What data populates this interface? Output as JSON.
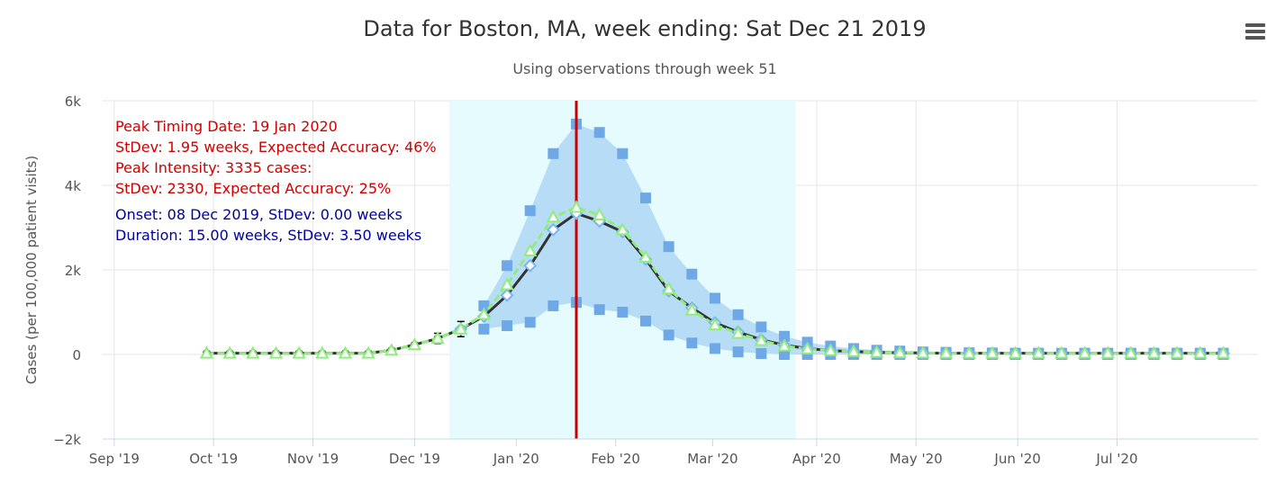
{
  "colors": {
    "band": "#9ecbf2",
    "onset_region": "#e6fbfd",
    "median_line": "#333333",
    "median_marker": "#7cb5ec",
    "square_marker": "#6fa8e6",
    "forecast_line": "#90ed7d",
    "peak_line": "#cc0000",
    "peak_text": "#d00000",
    "onset_text": "#0000a0"
  },
  "menu": {
    "icon": "hamburger-menu-icon"
  },
  "chart_data": {
    "type": "line",
    "title": "Data for Boston, MA, week ending: Sat Dec 21 2019",
    "subtitle": "Using observations through week 51",
    "ylabel": "Cases (per 100,000 patient visits)",
    "ylim": [
      -2000,
      6000
    ],
    "y_ticks": [
      {
        "value": -2000,
        "label": "−2k"
      },
      {
        "value": 0,
        "label": "0"
      },
      {
        "value": 2000,
        "label": "2k"
      },
      {
        "value": 4000,
        "label": "4k"
      },
      {
        "value": 6000,
        "label": "6k"
      }
    ],
    "x_ticks": [
      {
        "week": -4,
        "label": "Sep '19"
      },
      {
        "week": 0.3,
        "label": "Oct '19"
      },
      {
        "week": 4.6,
        "label": "Nov '19"
      },
      {
        "week": 9,
        "label": "Dec '19"
      },
      {
        "week": 13.4,
        "label": "Jan '20"
      },
      {
        "week": 17.7,
        "label": "Feb '20"
      },
      {
        "week": 21.9,
        "label": "Mar '20"
      },
      {
        "week": 26.4,
        "label": "Apr '20"
      },
      {
        "week": 30.7,
        "label": "May '20"
      },
      {
        "week": 35.1,
        "label": "Jun '20"
      },
      {
        "week": 39.4,
        "label": "Jul '20"
      }
    ],
    "xlim": [
      -4.5,
      45.5
    ],
    "weeks": [
      0,
      1,
      2,
      3,
      4,
      5,
      6,
      7,
      8,
      9,
      10,
      11,
      12,
      13,
      14,
      15,
      16,
      17,
      18,
      19,
      20,
      21,
      22,
      23,
      24,
      25,
      26,
      27,
      28,
      29,
      30,
      31,
      32,
      33,
      34,
      35,
      36,
      37,
      38,
      39,
      40,
      41,
      42,
      43,
      44
    ],
    "observed": [
      30,
      30,
      30,
      30,
      30,
      30,
      30,
      30,
      100,
      230,
      380,
      600
    ],
    "observed_error": [
      0,
      0,
      0,
      0,
      0,
      0,
      0,
      0,
      0,
      0,
      120,
      180
    ],
    "median": [
      null,
      null,
      null,
      null,
      null,
      null,
      null,
      null,
      null,
      null,
      null,
      600,
      900,
      1400,
      2100,
      2950,
      3335,
      3150,
      2900,
      2250,
      1500,
      1100,
      750,
      530,
      350,
      220,
      140,
      90,
      70,
      50,
      40,
      35,
      30,
      30,
      30,
      30,
      30,
      30,
      30,
      30,
      30,
      30,
      30,
      30,
      30
    ],
    "forecast_mean": [
      30,
      30,
      30,
      30,
      30,
      30,
      30,
      30,
      100,
      230,
      380,
      600,
      950,
      1650,
      2450,
      3250,
      3480,
      3300,
      2950,
      2300,
      1550,
      1050,
      700,
      500,
      330,
      200,
      130,
      90,
      70,
      50,
      40,
      35,
      30,
      30,
      30,
      30,
      30,
      30,
      30,
      30,
      30,
      30,
      30,
      30,
      30
    ],
    "upper": [
      null,
      null,
      null,
      null,
      null,
      null,
      null,
      null,
      null,
      null,
      null,
      null,
      1150,
      2100,
      3400,
      4750,
      5450,
      5250,
      4750,
      3700,
      2550,
      1900,
      1330,
      940,
      650,
      430,
      290,
      200,
      140,
      100,
      80,
      60,
      50,
      40,
      35,
      30,
      30,
      30,
      30,
      30,
      30,
      30,
      30,
      30,
      30
    ],
    "lower": [
      null,
      null,
      null,
      null,
      null,
      null,
      null,
      null,
      null,
      null,
      null,
      null,
      600,
      680,
      760,
      1150,
      1230,
      1060,
      1000,
      790,
      460,
      270,
      140,
      60,
      20,
      0,
      0,
      0,
      0,
      0,
      0,
      0,
      0,
      0,
      0,
      0,
      0,
      0,
      0,
      0,
      0,
      0,
      0,
      0,
      0
    ],
    "onset_region": {
      "start_week": 10.5,
      "end_week": 25.5
    },
    "peak_week": 16,
    "annotations": {
      "peak_lines": [
        "Peak Timing Date: 19 Jan 2020",
        "StDev: 1.95 weeks, Expected Accuracy: 46%",
        "Peak Intensity: 3335 cases:",
        "StDev: 2330, Expected Accuracy: 25%"
      ],
      "onset_lines": [
        "Onset: 08 Dec 2019, StDev: 0.00 weeks",
        "Duration: 15.00 weeks, StDev: 3.50 weeks"
      ]
    }
  }
}
